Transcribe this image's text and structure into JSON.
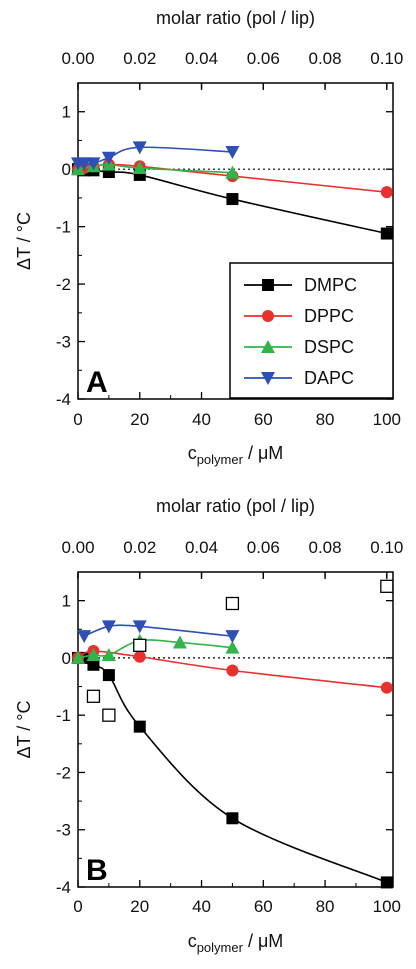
{
  "chart_data": [
    {
      "type": "line",
      "panel_label": "A",
      "top_axis_label": "molar ratio (pol / lip)",
      "top_ticks": [
        "0.00",
        "0.02",
        "0.04",
        "0.06",
        "0.08",
        "0.10"
      ],
      "top_range": [
        0,
        0.1
      ],
      "xlabel_main": "c",
      "xlabel_sub": "polymer",
      "xlabel_unit": " / μM",
      "ylabel": "ΔT / °C",
      "xlim": [
        0,
        102
      ],
      "ylim": [
        -4,
        1.5
      ],
      "x_ticks": [
        "0",
        "20",
        "40",
        "60",
        "80",
        "100"
      ],
      "y_ticks": [
        "-4",
        "-3",
        "-2",
        "-1",
        "0",
        "1"
      ],
      "legend": {
        "placement": "bottom-right",
        "entries": [
          "DMPC",
          "DPPC",
          "DSPC",
          "DAPC"
        ]
      },
      "series": [
        {
          "name": "DMPC",
          "color": "#000000",
          "marker": "square",
          "x": [
            0,
            2,
            5,
            10,
            20,
            50,
            100
          ],
          "y": [
            0,
            -0.02,
            -0.02,
            -0.05,
            -0.1,
            -0.52,
            -1.12
          ]
        },
        {
          "name": "DPPC",
          "color": "#e8312f",
          "marker": "circle",
          "x": [
            0,
            2,
            5,
            10,
            20,
            50,
            100
          ],
          "y": [
            0,
            0.02,
            0.05,
            0.08,
            0.05,
            -0.12,
            -0.4
          ]
        },
        {
          "name": "DSPC",
          "color": "#33b34a",
          "marker": "triangle-up",
          "x": [
            0,
            5,
            10,
            20,
            50
          ],
          "y": [
            0,
            0.05,
            0.08,
            0.02,
            -0.06
          ]
        },
        {
          "name": "DAPC",
          "color": "#2e4fb5",
          "marker": "triangle-down",
          "x": [
            0,
            2,
            5,
            10,
            20,
            50
          ],
          "y": [
            0.1,
            0.1,
            0.1,
            0.2,
            0.38,
            0.3
          ]
        }
      ]
    },
    {
      "type": "line",
      "panel_label": "B",
      "top_axis_label": "molar ratio (pol / lip)",
      "top_ticks": [
        "0.00",
        "0.02",
        "0.04",
        "0.06",
        "0.08",
        "0.10"
      ],
      "top_range": [
        0,
        0.1
      ],
      "xlabel_main": "c",
      "xlabel_sub": "polymer",
      "xlabel_unit": " / μM",
      "ylabel": "ΔT / °C",
      "xlim": [
        0,
        102
      ],
      "ylim": [
        -4,
        1.5
      ],
      "x_ticks": [
        "0",
        "20",
        "40",
        "60",
        "80",
        "100"
      ],
      "y_ticks": [
        "-4",
        "-3",
        "-2",
        "-1",
        "0",
        "1"
      ],
      "series": [
        {
          "name": "DMPC",
          "color": "#000000",
          "marker": "square",
          "x": [
            0,
            2,
            5,
            10,
            20,
            50,
            100
          ],
          "y": [
            0,
            0,
            -0.12,
            -0.3,
            -1.2,
            -2.8,
            -3.92
          ]
        },
        {
          "name": "DPPC",
          "color": "#e8312f",
          "marker": "circle",
          "x": [
            0,
            5,
            20,
            50,
            100
          ],
          "y": [
            0,
            0.12,
            0.02,
            -0.22,
            -0.52
          ]
        },
        {
          "name": "DSPC",
          "color": "#33b34a",
          "marker": "triangle-up",
          "x": [
            0,
            5,
            10,
            20,
            33,
            50
          ],
          "y": [
            0,
            0.05,
            0.05,
            0.3,
            0.27,
            0.18
          ]
        },
        {
          "name": "DAPC",
          "color": "#2e4fb5",
          "marker": "triangle-down",
          "x": [
            2,
            10,
            20,
            50
          ],
          "y": [
            0.38,
            0.55,
            0.55,
            0.38
          ]
        },
        {
          "name": "",
          "color": "#000000",
          "marker": "open-square",
          "x": [
            5,
            10,
            20,
            50,
            100
          ],
          "y": [
            -0.67,
            -1.0,
            0.22,
            0.95,
            1.25
          ]
        }
      ]
    }
  ]
}
